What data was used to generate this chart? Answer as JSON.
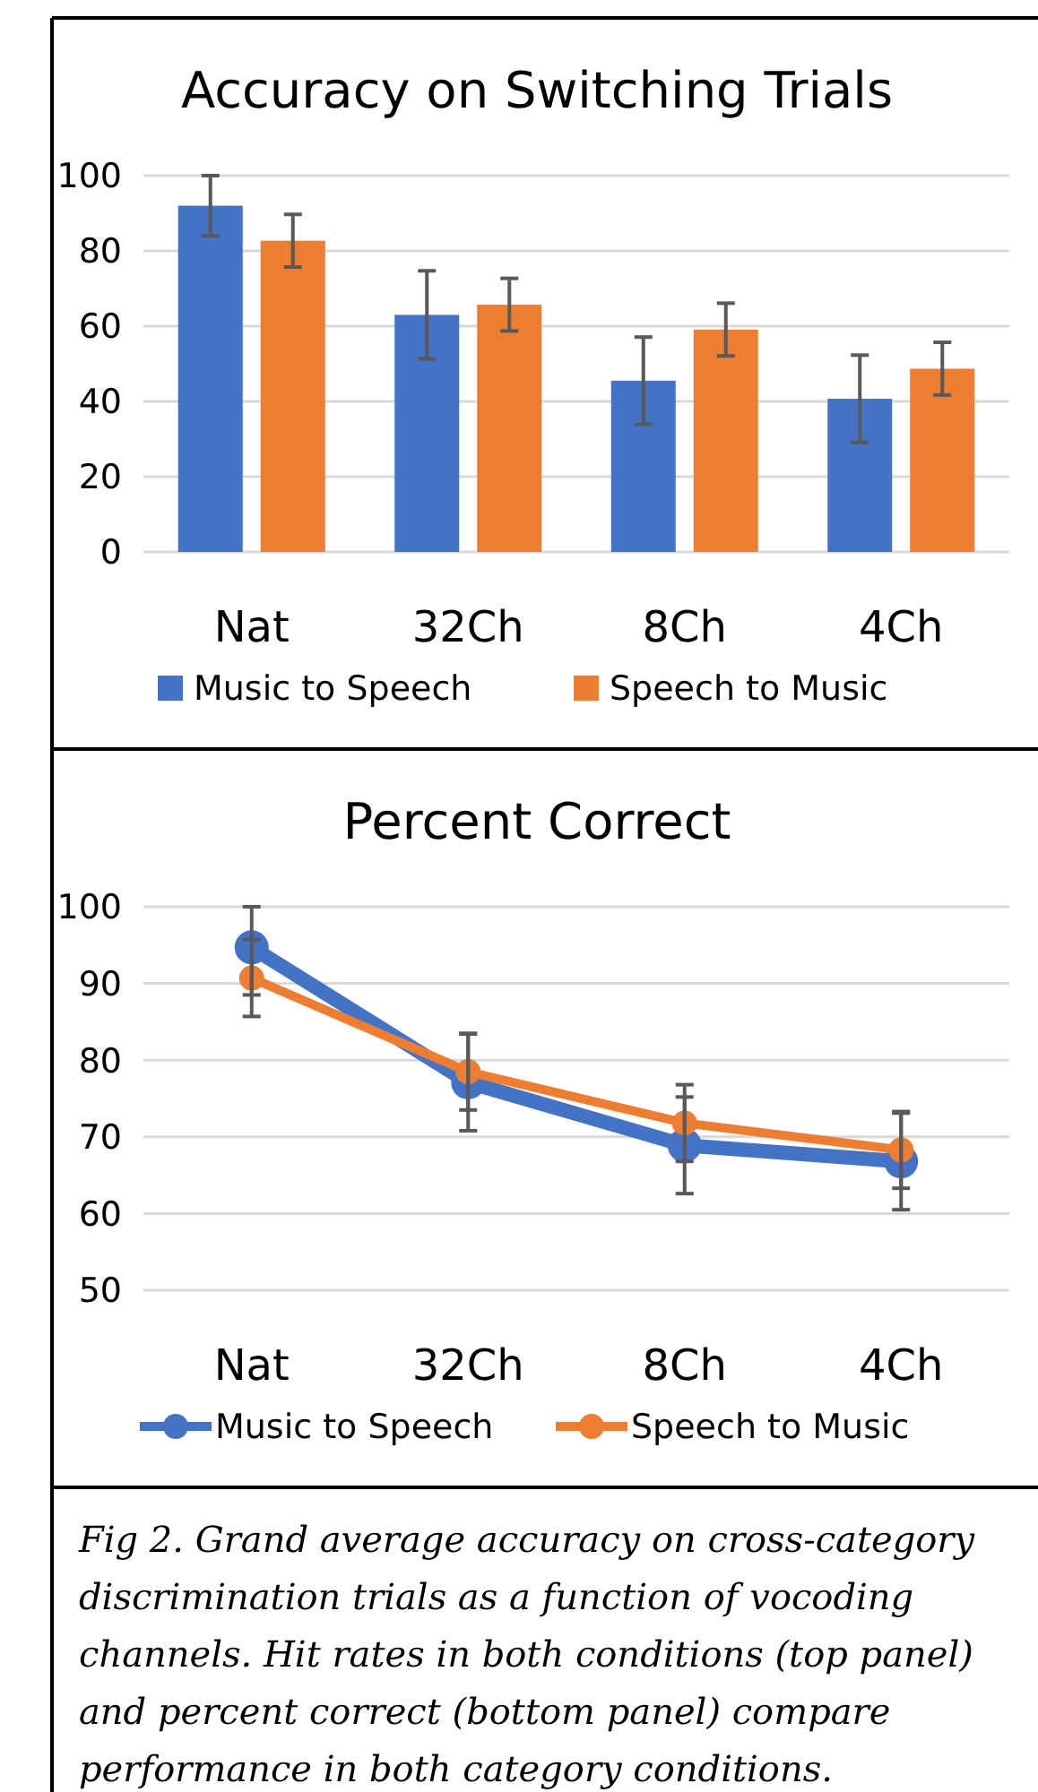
{
  "chart_data": [
    {
      "type": "bar",
      "title": "Accuracy on Switching Trials",
      "categories": [
        "Nat",
        "32Ch",
        "8Ch",
        "4Ch"
      ],
      "series": [
        {
          "name": "Music to Speech",
          "color": "#4472c4",
          "values": [
            92,
            63,
            45.5,
            40.7
          ],
          "errors": [
            8,
            11.7,
            11.6,
            11.6
          ]
        },
        {
          "name": "Speech to Music",
          "color": "#ed7d31",
          "values": [
            82.7,
            65.7,
            59.1,
            48.7
          ],
          "errors": [
            7,
            7,
            7,
            7
          ]
        }
      ],
      "ylim": [
        0,
        100
      ],
      "yticks": [
        0,
        20,
        40,
        60,
        80,
        100
      ],
      "grid": "y",
      "legend": "bottom"
    },
    {
      "type": "line",
      "title": "Percent Correct",
      "categories": [
        "Nat",
        "32Ch",
        "8Ch",
        "4Ch"
      ],
      "series": [
        {
          "name": "Music to Speech",
          "color": "#4472c4",
          "values": [
            94.7,
            77.1,
            68.9,
            66.8
          ],
          "errors": [
            [
              88.5,
              100
            ],
            6.3,
            6.3,
            6.3
          ]
        },
        {
          "name": "Speech to Music",
          "color": "#ed7d31",
          "values": [
            90.7,
            78.5,
            71.8,
            68.3
          ],
          "errors": [
            5,
            5,
            5,
            5
          ]
        }
      ],
      "ylim": [
        50,
        100
      ],
      "yticks": [
        50,
        60,
        70,
        80,
        90,
        100
      ],
      "grid": "y",
      "legend": "bottom",
      "marker": "circle",
      "line_style": "solid",
      "annotations": [
        "Fig 2. Grand average accuracy on cross-category discrimination trials as a function of vocoding channels. Hit rates in both conditions (top panel) and percent correct (bottom panel) compare performance in both category conditions."
      ]
    }
  ]
}
